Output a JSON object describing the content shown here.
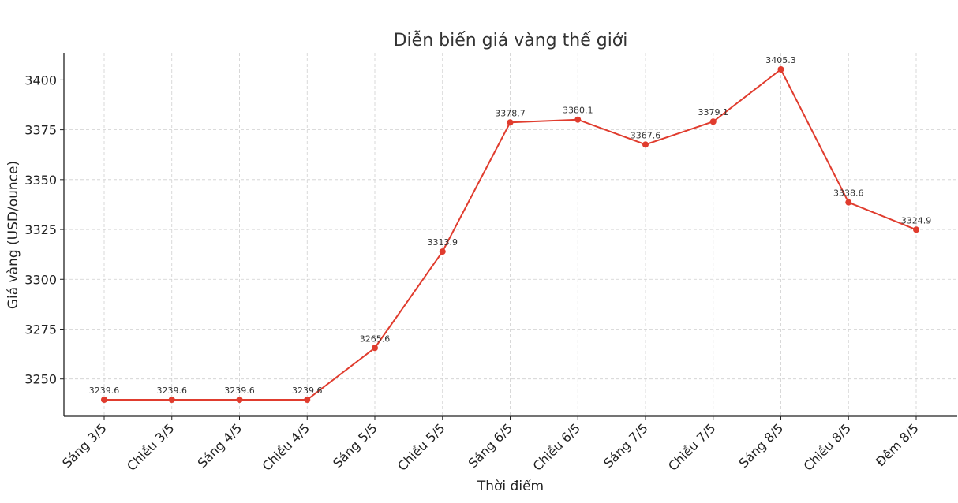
{
  "chart_data": {
    "type": "line",
    "title": "Diễn biến giá vàng thế giới",
    "xlabel": "Thời điểm",
    "ylabel": "Giá vàng (USD/ounce)",
    "categories": [
      "Sáng 3/5",
      "Chiều 3/5",
      "Sáng 4/5",
      "Chiều 4/5",
      "Sáng 5/5",
      "Chiều 5/5",
      "Sáng 6/5",
      "Chiều 6/5",
      "Sáng 7/5",
      "Chiều 7/5",
      "Sáng 8/5",
      "Chiều 8/5",
      "Đêm 8/5"
    ],
    "series": [
      {
        "values": [
          3239.6,
          3239.6,
          3239.6,
          3239.6,
          3265.6,
          3313.9,
          3378.7,
          3380.1,
          3367.6,
          3379.1,
          3405.3,
          3338.6,
          3324.9
        ],
        "color": "#e03c2e"
      }
    ],
    "data_labels": [
      "3239.6",
      "3239.6",
      "3239.6",
      "3239.6",
      "3265.6",
      "3313.9",
      "3378.7",
      "3380.1",
      "3367.6",
      "3379.1",
      "3405.3",
      "3338.6",
      "3324.9"
    ],
    "yticks": [
      3250,
      3275,
      3300,
      3325,
      3350,
      3375,
      3400
    ],
    "ytick_labels": [
      "3250",
      "3275",
      "3300",
      "3325",
      "3350",
      "3375",
      "3400"
    ],
    "ylim": [
      3231.3,
      3413.6
    ],
    "grid": true,
    "legend": "none"
  }
}
